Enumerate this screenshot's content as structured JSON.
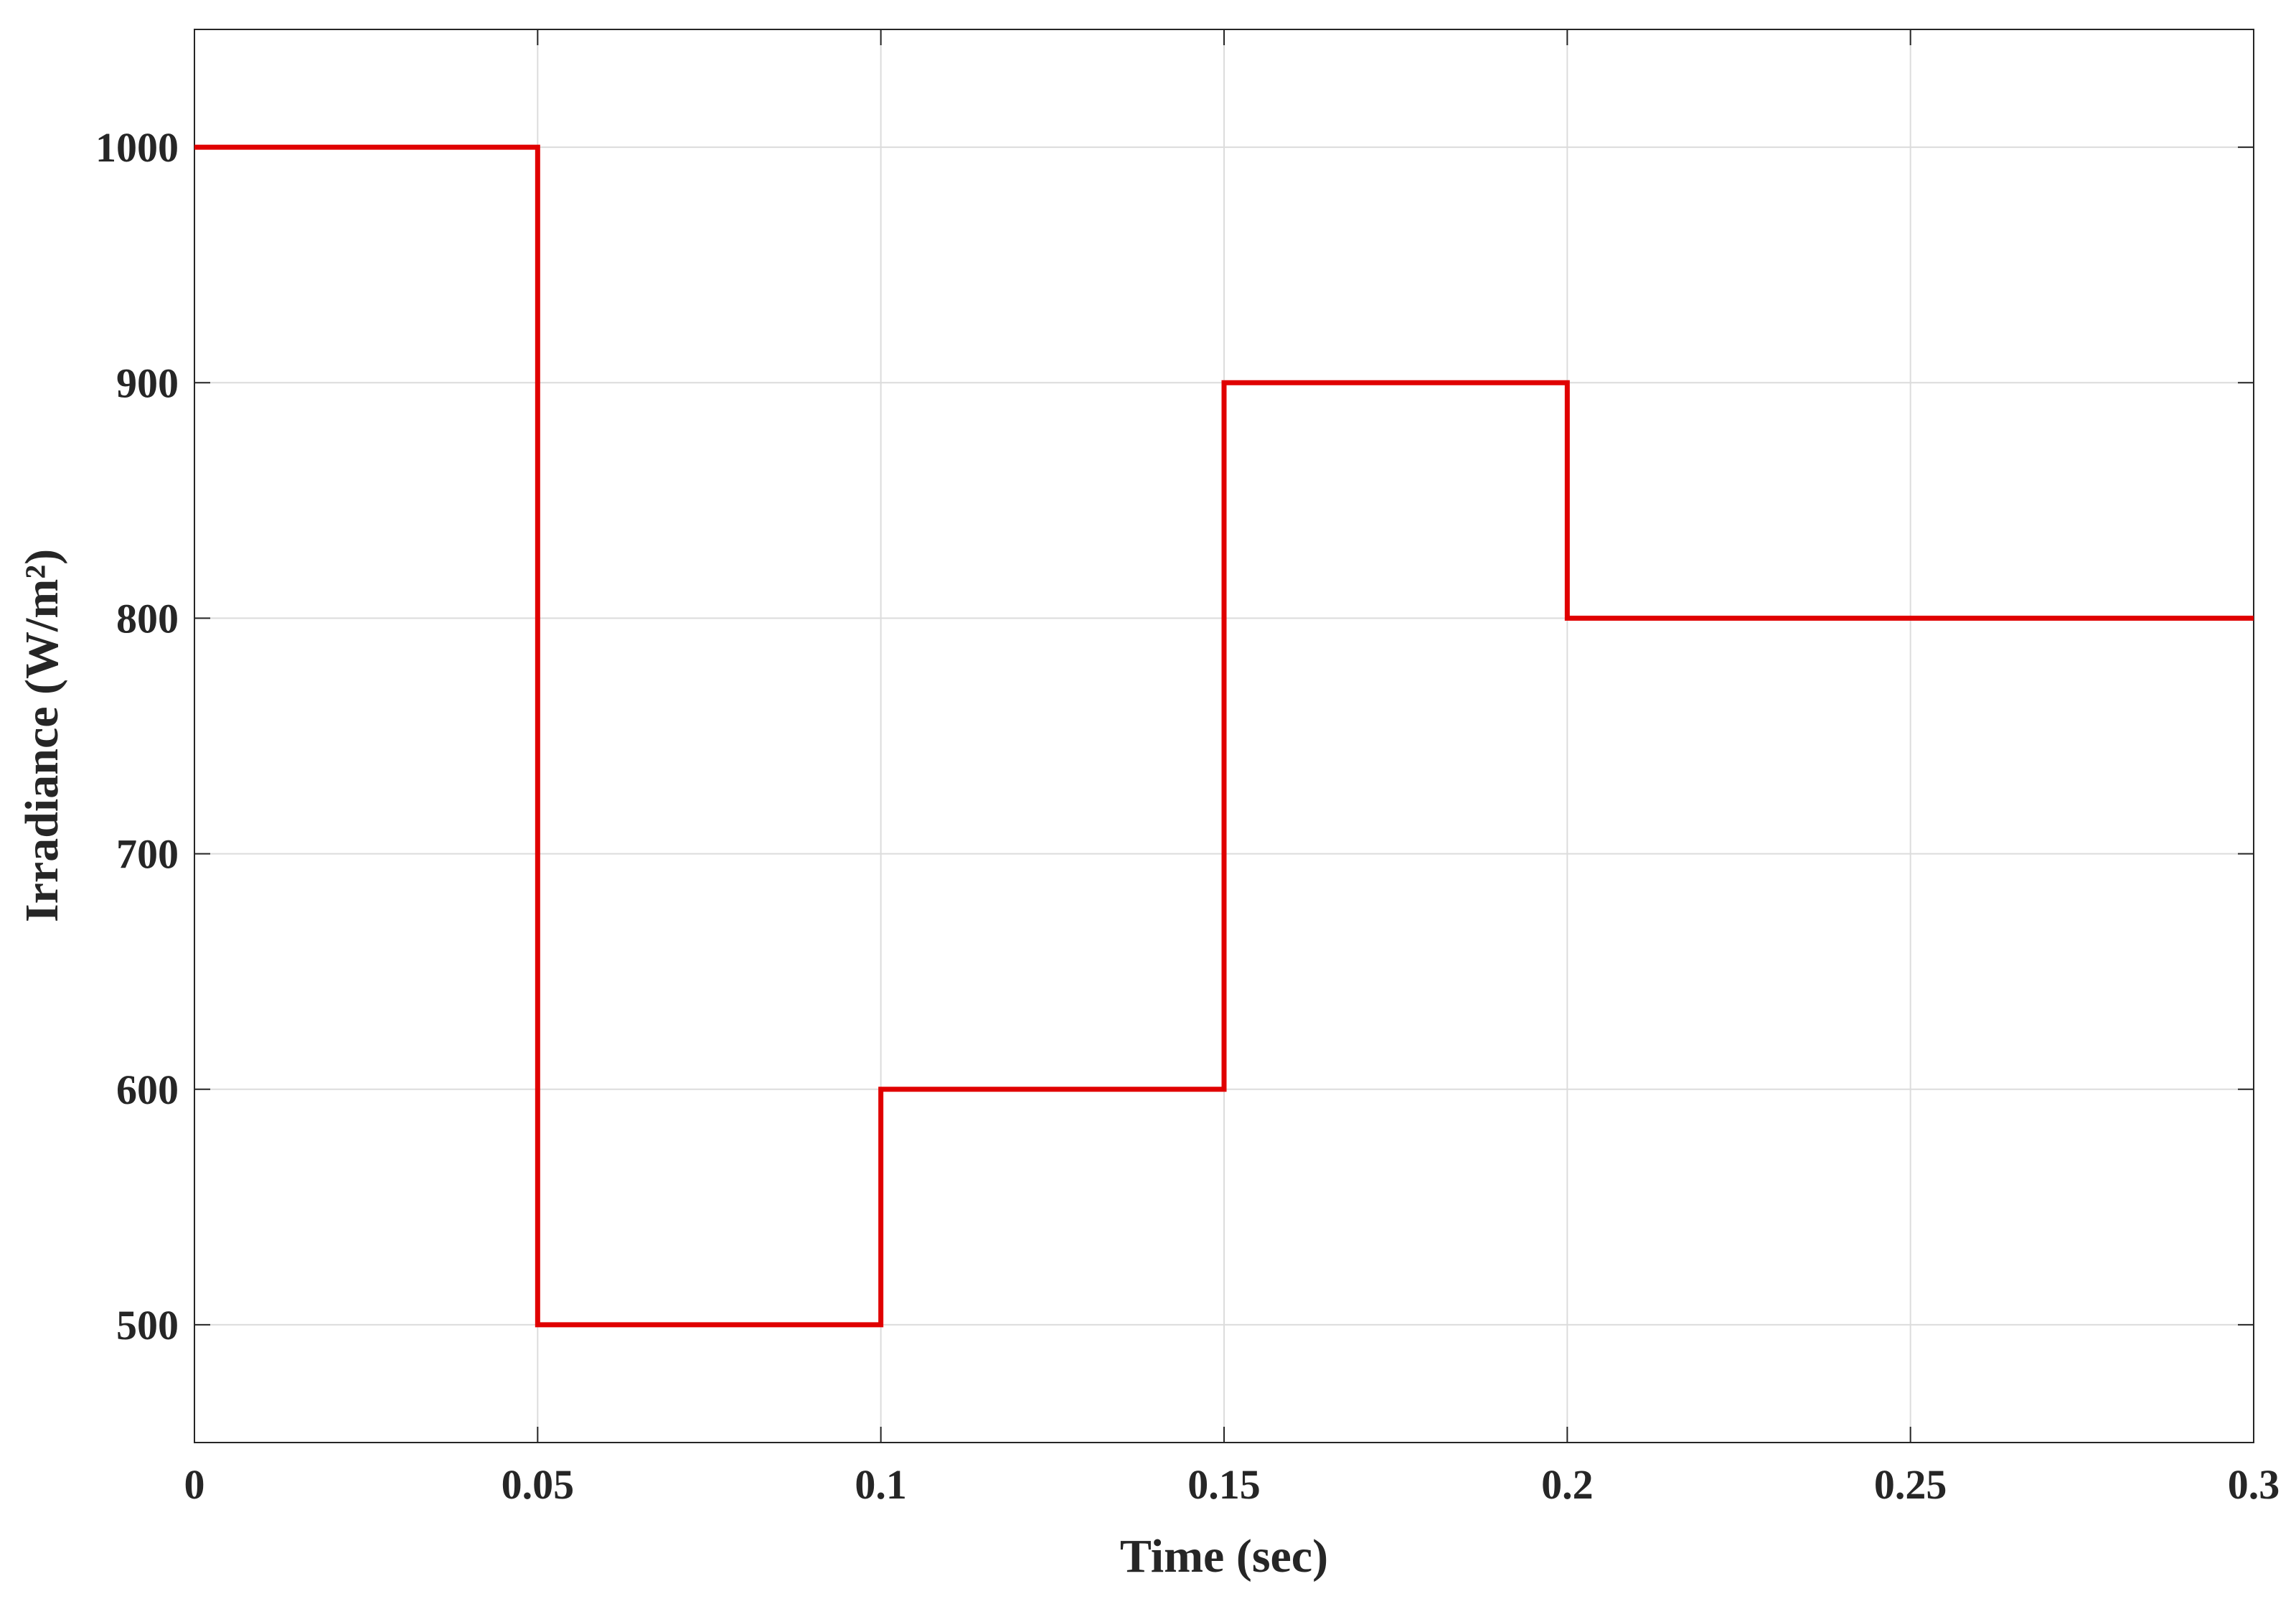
{
  "chart_data": {
    "type": "line",
    "x_label": "Time (sec)",
    "y_label": "Irradiance (W/m²)",
    "x": [
      0,
      0.05,
      0.05,
      0.1,
      0.1,
      0.15,
      0.15,
      0.2,
      0.2,
      0.3
    ],
    "values": [
      1000,
      1000,
      500,
      500,
      600,
      600,
      900,
      900,
      800,
      800
    ],
    "color": "#e00000",
    "xlim": [
      0,
      0.3
    ],
    "xticks": [
      0,
      0.05,
      0.1,
      0.15,
      0.2,
      0.25,
      0.3
    ],
    "ylim": [
      450,
      1050
    ],
    "yticks": [
      500,
      600,
      700,
      800,
      900,
      1000
    ],
    "grid": true
  }
}
